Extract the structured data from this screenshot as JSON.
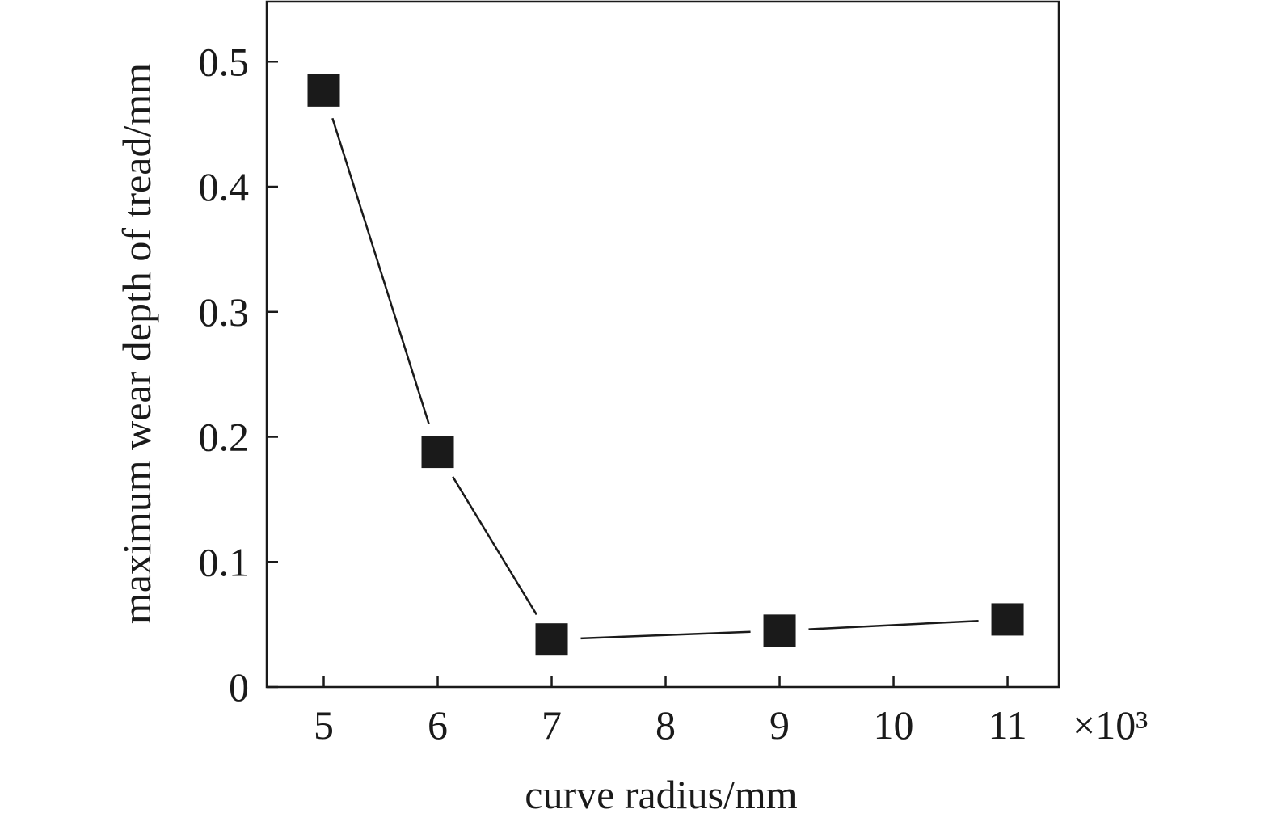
{
  "chart_data": {
    "type": "line",
    "xlabel": "curve radius/mm",
    "ylabel": "maximum wear depth of tread/mm",
    "x_multiplier_label": "×10³",
    "x_ticks": [
      "5",
      "6",
      "7",
      "8",
      "9",
      "10",
      "11"
    ],
    "y_ticks": [
      "0",
      "0.1",
      "0.2",
      "0.3",
      "0.4",
      "0.5"
    ],
    "xlim": [
      4.5,
      11.45
    ],
    "ylim": [
      0,
      0.548
    ],
    "grid": false,
    "legend": "none",
    "marker": "square",
    "color": "#1a1a1a",
    "series": [
      {
        "x": [
          5,
          6,
          7,
          9,
          11
        ],
        "y": [
          0.477,
          0.188,
          0.038,
          0.045,
          0.054
        ]
      }
    ]
  }
}
